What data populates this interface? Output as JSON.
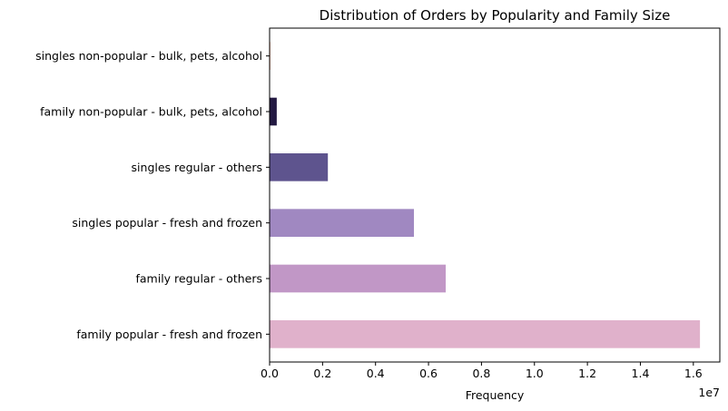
{
  "chart_data": {
    "type": "bar",
    "orientation": "horizontal",
    "title": "Distribution of Orders by Popularity and Family Size",
    "xlabel": "Frequency",
    "ylabel": "",
    "x_scale_note": "1e7",
    "xlim": [
      0,
      17000000
    ],
    "xticks": [
      0,
      2000000,
      4000000,
      6000000,
      8000000,
      10000000,
      12000000,
      14000000,
      16000000
    ],
    "xtick_labels": [
      "0.0",
      "0.2",
      "0.4",
      "0.6",
      "0.8",
      "1.0",
      "1.2",
      "1.4",
      "1.6"
    ],
    "grid": false,
    "legend": "none",
    "categories": [
      "family popular - fresh and frozen",
      "family regular - others",
      "singles popular - fresh and frozen",
      "singles regular - others",
      "family non-popular - bulk, pets, alcohol",
      "singles non-popular - bulk, pets, alcohol"
    ],
    "values": [
      16250000,
      6650000,
      5450000,
      2200000,
      270000,
      30000
    ],
    "colors": [
      "#e0b1cb",
      "#c197c6",
      "#a088c1",
      "#5e548e",
      "#231942",
      "#f4b49a"
    ]
  }
}
